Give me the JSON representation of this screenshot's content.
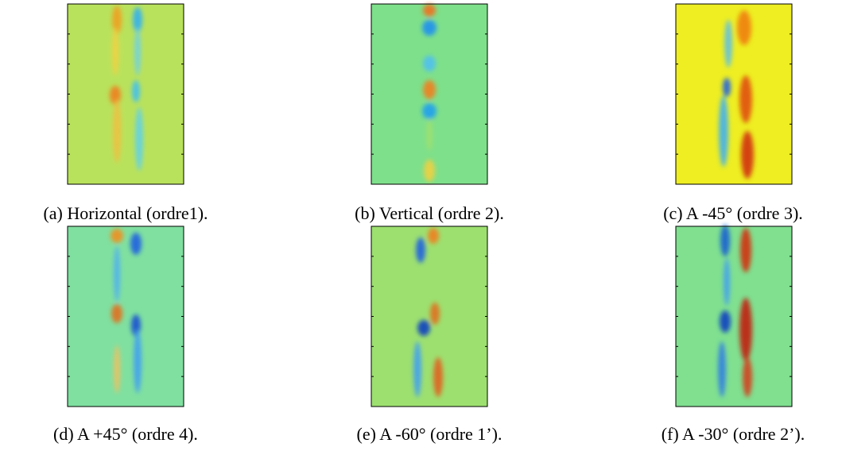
{
  "figure": {
    "panels": [
      {
        "caption": "(a) Horizontal (ordre1)."
      },
      {
        "caption": "(b) Vertical (ordre 2)."
      },
      {
        "caption": "(c) A -45° (ordre 3)."
      },
      {
        "caption": "(d) A +45° (ordre 4)."
      },
      {
        "caption": "(e) A -60° (ordre 1’)."
      },
      {
        "caption": "(f) A -30° (ordre 2’)."
      }
    ]
  }
}
